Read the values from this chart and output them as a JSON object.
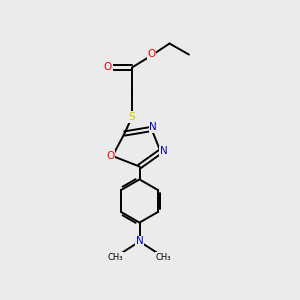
{
  "background_color": "#ebebeb",
  "bond_color": "#000000",
  "bond_width": 1.4,
  "colors": {
    "O": "#ff0000",
    "N": "#0000cc",
    "S": "#cccc00",
    "C": "#000000"
  },
  "figsize": [
    3.0,
    3.0
  ],
  "dpi": 100
}
